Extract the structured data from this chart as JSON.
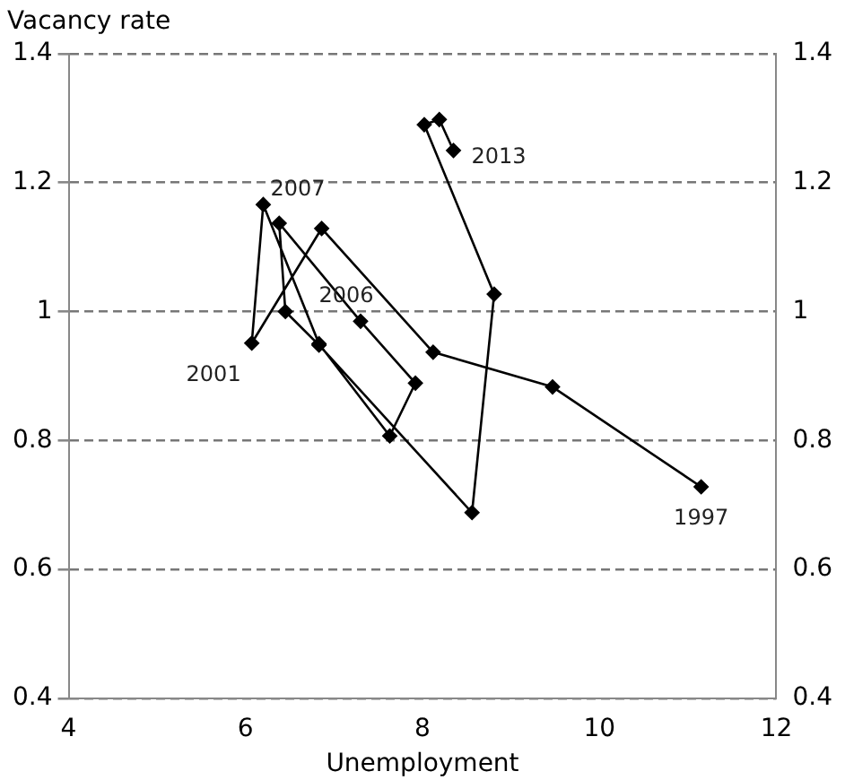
{
  "chart_data": {
    "type": "line",
    "xlabel": "Unemployment",
    "ylabel": "Vacancy rate",
    "x": [
      11.15,
      9.47,
      8.12,
      6.86,
      6.07,
      6.2,
      6.83,
      7.63,
      7.92,
      7.3,
      6.38,
      6.45,
      6.83,
      8.56,
      8.81,
      8.02,
      8.19,
      8.35
    ],
    "series": [
      {
        "color": "#000000",
        "values": [
          0.728,
          0.883,
          0.937,
          1.129,
          0.951,
          1.166,
          0.95,
          0.807,
          0.889,
          0.985,
          1.137,
          1.0,
          0.948,
          0.688,
          1.027,
          1.29,
          1.298,
          1.25
        ]
      }
    ],
    "xlim": [
      4,
      12
    ],
    "xticks": [
      4,
      6,
      8,
      10,
      12
    ],
    "ylim": [
      0.4,
      1.4
    ],
    "yticks": [
      0.4,
      0.6,
      0.8,
      1.0,
      1.2,
      1.4
    ],
    "y2lim": [
      0.4,
      1.4
    ],
    "y2ticks": [
      0.4,
      0.6,
      0.8,
      1.0,
      1.2,
      1.4
    ],
    "grid": "y",
    "marker": "diamond",
    "line_style": "solid",
    "annotations": [
      {
        "text": "1997",
        "x": 11.15,
        "y": 0.728
      },
      {
        "text": "2001",
        "x": 6.07,
        "y": 0.951
      },
      {
        "text": "2006",
        "x": 7.3,
        "y": 0.985
      },
      {
        "text": "2007",
        "x": 6.2,
        "y": 1.166
      },
      {
        "text": "2013",
        "x": 8.35,
        "y": 1.25
      }
    ]
  }
}
